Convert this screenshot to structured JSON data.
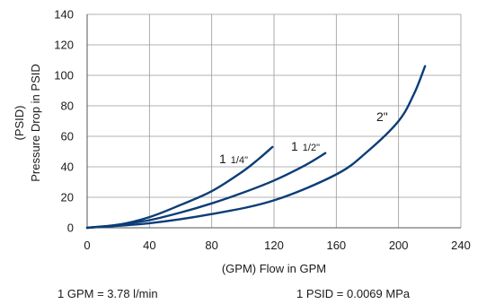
{
  "chart_data": {
    "type": "line",
    "title": "",
    "xlabel": "(GPM) Flow in GPM",
    "ylabel_lines": [
      "(PSID)",
      "Pressure Drop in PSID"
    ],
    "xlim": [
      0,
      240
    ],
    "ylim": [
      0,
      140
    ],
    "xticks": [
      0,
      40,
      80,
      120,
      160,
      200,
      240
    ],
    "yticks": [
      0,
      20,
      40,
      60,
      80,
      100,
      120,
      140
    ],
    "grid": true,
    "line_color": "#0b3d77",
    "series": [
      {
        "name": "1 1/4\"",
        "label_main": "1",
        "label_frac": "1/4\"",
        "x": [
          0,
          20,
          40,
          60,
          80,
          100,
          110,
          119
        ],
        "y": [
          0,
          2,
          7,
          15,
          24,
          37,
          45,
          53
        ]
      },
      {
        "name": "1 1/2\"",
        "label_main": "1",
        "label_frac": "1/2\"",
        "x": [
          0,
          20,
          40,
          60,
          80,
          100,
          120,
          140,
          153
        ],
        "y": [
          0,
          2,
          5,
          10,
          16,
          23,
          31,
          41,
          49
        ]
      },
      {
        "name": "2\"",
        "label_main": "2\"",
        "label_frac": "",
        "x": [
          0,
          40,
          80,
          120,
          160,
          180,
          200,
          210,
          217
        ],
        "y": [
          0,
          3,
          9,
          18,
          35,
          50,
          70,
          88,
          106
        ]
      }
    ]
  },
  "footnotes": {
    "flow_conversion": "1 GPM = 3.78 l/min",
    "pressure_conversion": "1 PSID = 0.0069 MPa"
  }
}
